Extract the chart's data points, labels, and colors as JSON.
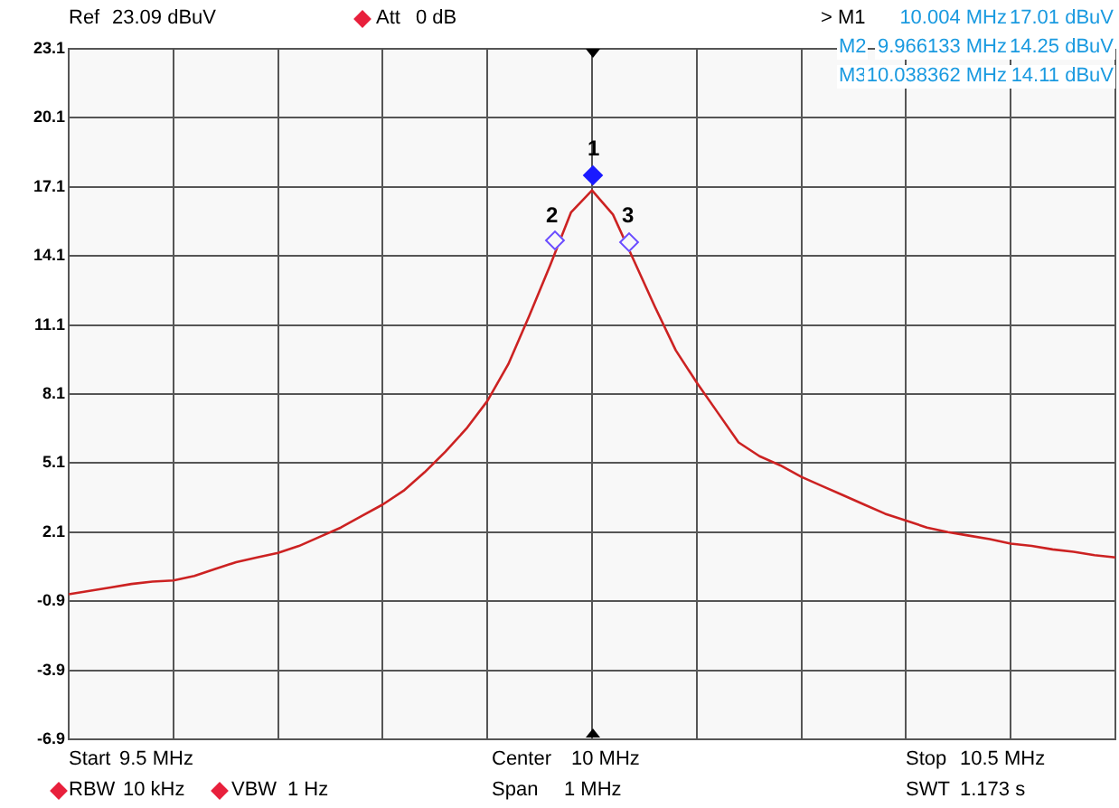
{
  "chart_data": {
    "type": "line",
    "categories": [
      null,
      null,
      null,
      null,
      null,
      null,
      null,
      null,
      null,
      null,
      null,
      null,
      null,
      null,
      null,
      null,
      null,
      null,
      null,
      null,
      null,
      null,
      null,
      null,
      null,
      null,
      null,
      null,
      null,
      null,
      null,
      null,
      null,
      null,
      null,
      null,
      null,
      null,
      null,
      null,
      null,
      null,
      null,
      null,
      null,
      null,
      null,
      null,
      null,
      null,
      null
    ],
    "ylim": [
      -6.9,
      23.1
    ],
    "yticks": [
      -6.9,
      -3.9,
      -0.9,
      2.1,
      5.1,
      8.1,
      11.1,
      14.1,
      17.1,
      20.1,
      23.1
    ],
    "tick_labels": "y",
    "grid": true,
    "series": [
      {
        "color": "#cc2222",
        "values": [
          -0.6,
          -0.45,
          -0.3,
          -0.15,
          -0.05,
          0.0,
          0.2,
          0.5,
          0.8,
          1.0,
          1.2,
          1.5,
          1.9,
          2.3,
          2.8,
          3.3,
          3.9,
          4.7,
          5.6,
          6.6,
          7.8,
          9.4,
          11.5,
          13.7,
          16.0,
          16.95,
          15.9,
          13.9,
          11.9,
          10.0,
          8.6,
          7.3,
          6.0,
          5.4,
          5.0,
          4.5,
          4.1,
          3.7,
          3.3,
          2.9,
          2.6,
          2.3,
          2.1,
          1.95,
          1.8,
          1.6,
          1.5,
          1.35,
          1.25,
          1.1,
          1.0
        ]
      }
    ],
    "annotations": [
      "1",
      "2",
      "3",
      "Ref",
      "23.09 dBuV",
      "Att",
      "0 dB",
      "> M1",
      "10.004 MHz",
      "17.01 dBuV",
      "M2",
      "9.966133 MHz",
      "14.25 dBuV",
      "M3",
      "10.038362 MHz",
      "14.11 dBuV",
      "Start",
      "9.5 MHz",
      "Center",
      "10 MHz",
      "Stop",
      "10.5 MHz",
      "RBW",
      "10 kHz",
      "VBW",
      "1 Hz",
      "Span",
      "1 MHz",
      "SWT",
      "1.173 s"
    ]
  }
}
